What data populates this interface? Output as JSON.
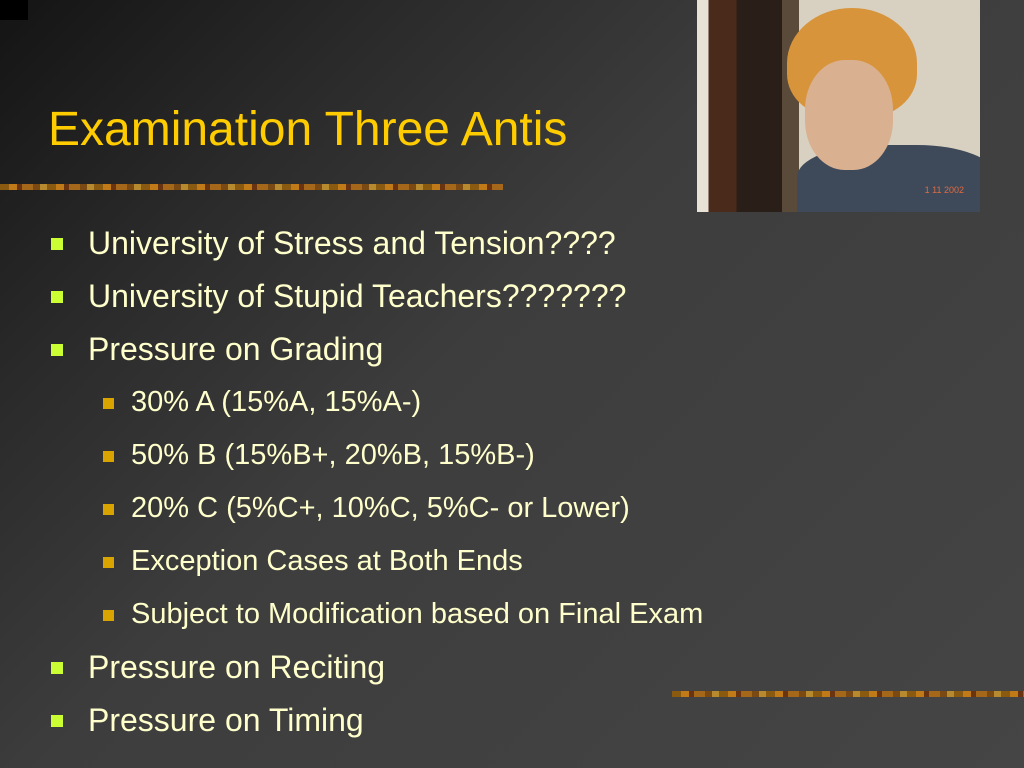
{
  "slide": {
    "title": "Examination Three Antis",
    "photo": {
      "date_stamp": "1  11  2002"
    },
    "colors": {
      "title": "#ffcc00",
      "text": "#ffffcc",
      "bullet_level1": "#ccff33",
      "bullet_level2": "#d9a300"
    },
    "bullets": [
      {
        "level": 1,
        "text": "University of Stress and Tension????"
      },
      {
        "level": 1,
        "text": "University of Stupid Teachers???????"
      },
      {
        "level": 1,
        "text": "Pressure on Grading"
      },
      {
        "level": 2,
        "text": "30% A (15%A, 15%A-)"
      },
      {
        "level": 2,
        "text": "50% B (15%B+, 20%B, 15%B-)"
      },
      {
        "level": 2,
        "text": "20% C (5%C+, 10%C, 5%C- or Lower)"
      },
      {
        "level": 2,
        "text": "Exception Cases at Both Ends"
      },
      {
        "level": 2,
        "text": "Subject to Modification based on Final Exam"
      },
      {
        "level": 1,
        "text": "Pressure on Reciting"
      },
      {
        "level": 1,
        "text": "Pressure on Timing"
      }
    ]
  }
}
